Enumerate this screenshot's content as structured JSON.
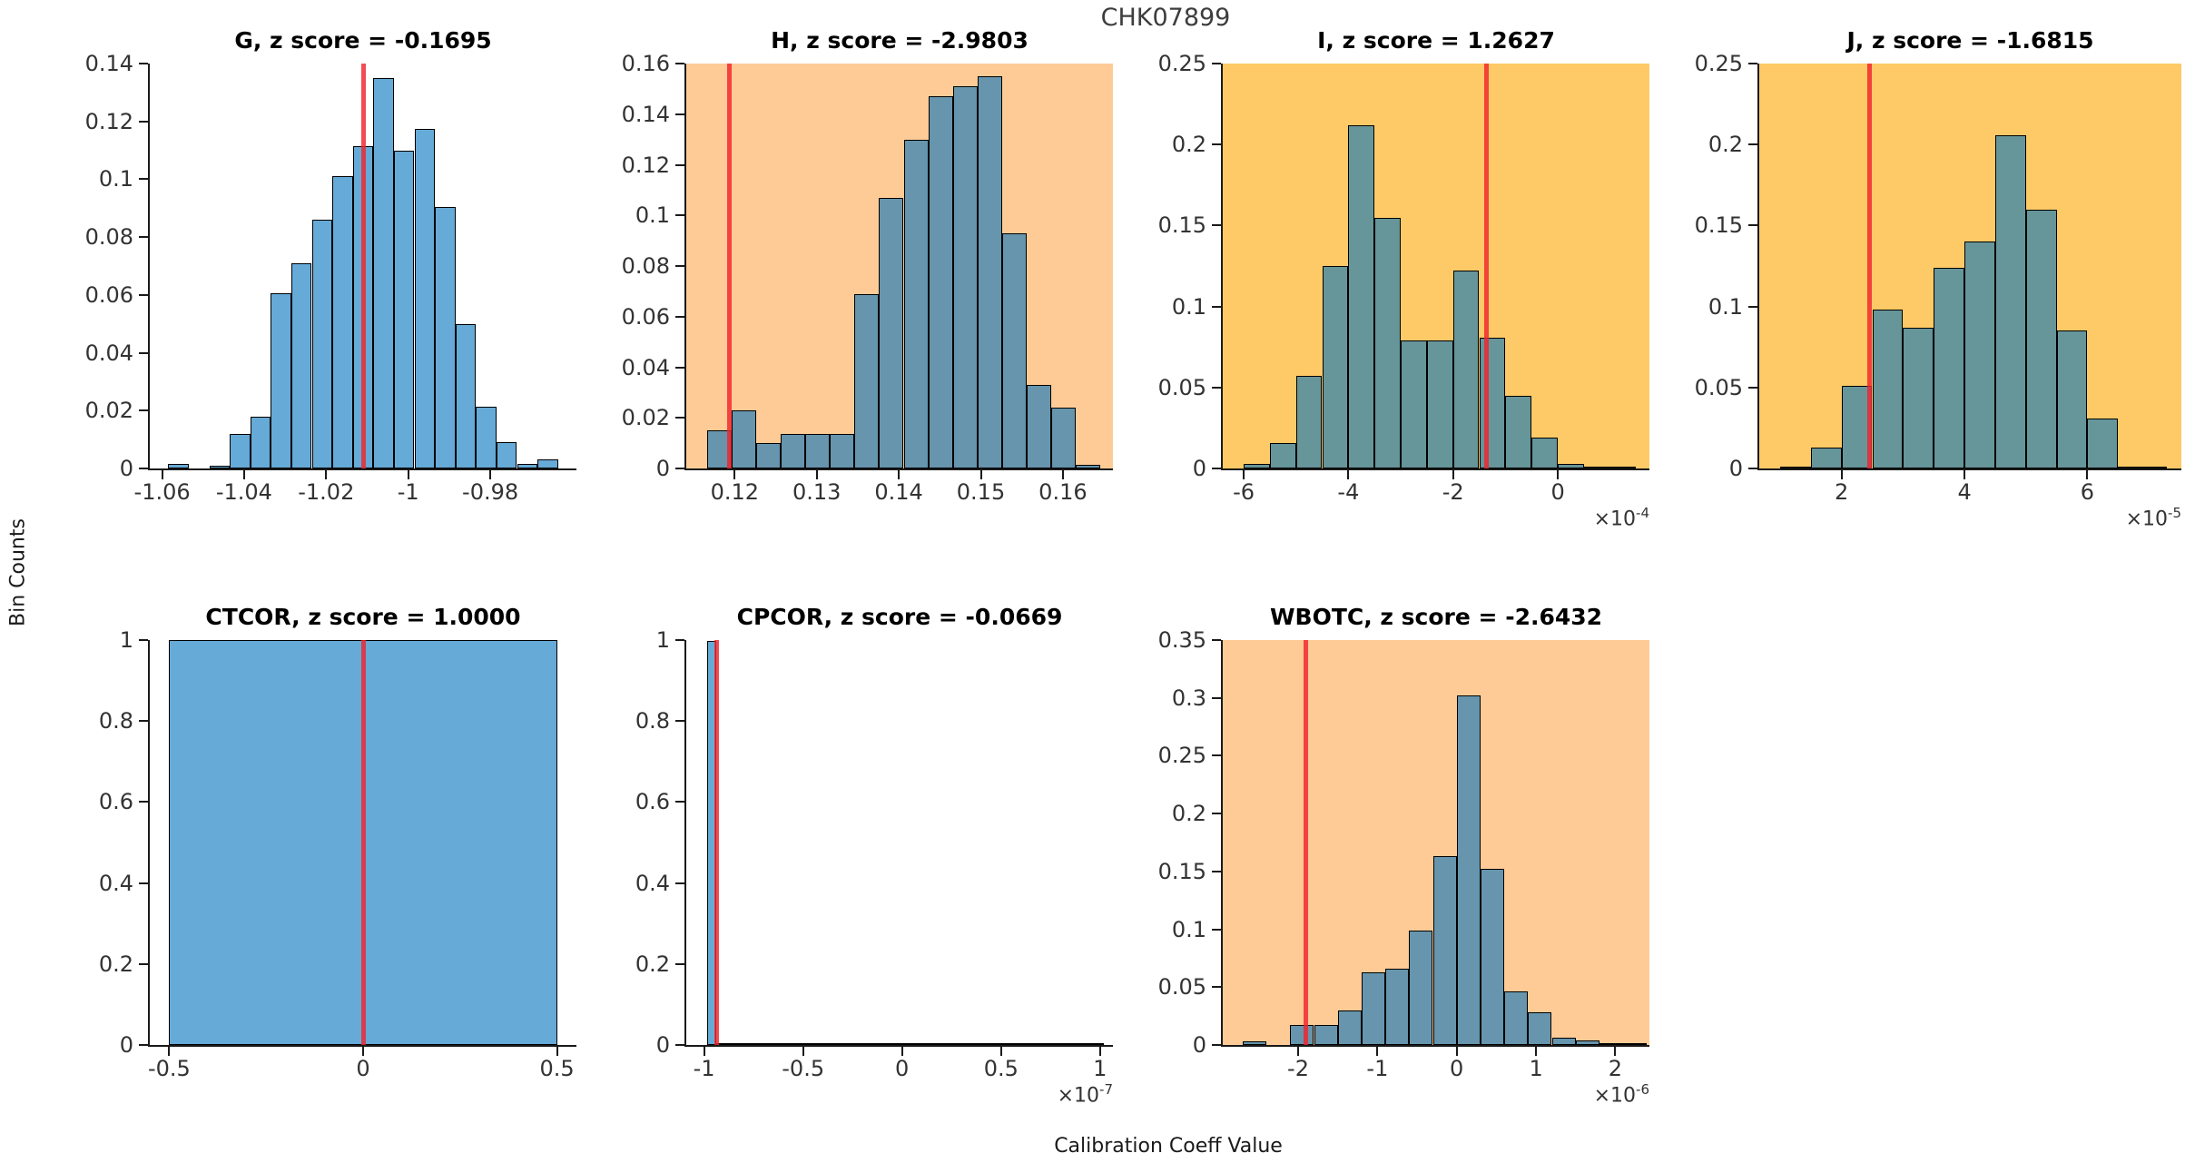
{
  "figure": {
    "suptitle": "CHK07899",
    "xlabel": "Calibration Coeff Value",
    "ylabel": "Bin Counts"
  },
  "colors": {
    "bar_fill": "rgba(0,114,189,0.6)",
    "bar_edge": "#000000",
    "red_line": "rgba(240,35,45,0.82)",
    "axis": "#1a1a1a",
    "tick_label": "#333333",
    "bg_white": "#ffffff",
    "bg_peach": "#fecb96",
    "bg_yellow": "#feca67"
  },
  "chart_data": [
    {
      "type": "bar",
      "name": "G",
      "title": "G, z score = -0.1695",
      "z_score": -0.1695,
      "background": "#ffffff",
      "exponent": null,
      "xlim": [
        -1.063,
        -0.959
      ],
      "ylim": [
        0,
        0.14
      ],
      "red_line_x": -1.011,
      "bin_width": 0.005,
      "xticks": [
        {
          "v": -1.06,
          "label": "-1.06"
        },
        {
          "v": -1.04,
          "label": "-1.04"
        },
        {
          "v": -1.02,
          "label": "-1.02"
        },
        {
          "v": -1.0,
          "label": "-1"
        },
        {
          "v": -0.98,
          "label": "-0.98"
        }
      ],
      "yticks": [
        {
          "v": 0,
          "label": "0"
        },
        {
          "v": 0.02,
          "label": "0.02"
        },
        {
          "v": 0.04,
          "label": "0.04"
        },
        {
          "v": 0.06,
          "label": "0.06"
        },
        {
          "v": 0.08,
          "label": "0.08"
        },
        {
          "v": 0.1,
          "label": "0.1"
        },
        {
          "v": 0.12,
          "label": "0.12"
        },
        {
          "v": 0.14,
          "label": "0.14"
        }
      ],
      "bars": [
        {
          "x": -1.0585,
          "h": 0.0015
        },
        {
          "x": -1.0485,
          "h": 0.001
        },
        {
          "x": -1.0435,
          "h": 0.012
        },
        {
          "x": -1.0385,
          "h": 0.018
        },
        {
          "x": -1.0335,
          "h": 0.0605
        },
        {
          "x": -1.0285,
          "h": 0.071
        },
        {
          "x": -1.0235,
          "h": 0.086
        },
        {
          "x": -1.0185,
          "h": 0.101
        },
        {
          "x": -1.0135,
          "h": 0.1115
        },
        {
          "x": -1.0085,
          "h": 0.135
        },
        {
          "x": -1.0035,
          "h": 0.11
        },
        {
          "x": -0.9985,
          "h": 0.1175
        },
        {
          "x": -0.9935,
          "h": 0.0905
        },
        {
          "x": -0.9885,
          "h": 0.05
        },
        {
          "x": -0.9835,
          "h": 0.0215
        },
        {
          "x": -0.9785,
          "h": 0.009
        },
        {
          "x": -0.9735,
          "h": 0.0015
        },
        {
          "x": -0.9685,
          "h": 0.003
        }
      ]
    },
    {
      "type": "bar",
      "name": "H",
      "title": "H, z score = -2.9803",
      "z_score": -2.9803,
      "background": "#fecb96",
      "exponent": null,
      "xlim": [
        0.1141,
        0.1661
      ],
      "ylim": [
        0,
        0.16
      ],
      "red_line_x": 0.1194,
      "bin_width": 0.003,
      "xticks": [
        {
          "v": 0.12,
          "label": "0.12"
        },
        {
          "v": 0.13,
          "label": "0.13"
        },
        {
          "v": 0.14,
          "label": "0.14"
        },
        {
          "v": 0.15,
          "label": "0.15"
        },
        {
          "v": 0.16,
          "label": "0.16"
        }
      ],
      "yticks": [
        {
          "v": 0,
          "label": "0"
        },
        {
          "v": 0.02,
          "label": "0.02"
        },
        {
          "v": 0.04,
          "label": "0.04"
        },
        {
          "v": 0.06,
          "label": "0.06"
        },
        {
          "v": 0.08,
          "label": "0.08"
        },
        {
          "v": 0.1,
          "label": "0.1"
        },
        {
          "v": 0.12,
          "label": "0.12"
        },
        {
          "v": 0.14,
          "label": "0.14"
        },
        {
          "v": 0.16,
          "label": "0.16"
        }
      ],
      "bars": [
        {
          "x": 0.1166,
          "h": 0.015
        },
        {
          "x": 0.1196,
          "h": 0.023
        },
        {
          "x": 0.1226,
          "h": 0.01
        },
        {
          "x": 0.1256,
          "h": 0.0135
        },
        {
          "x": 0.1286,
          "h": 0.0135
        },
        {
          "x": 0.1316,
          "h": 0.0135
        },
        {
          "x": 0.1346,
          "h": 0.069
        },
        {
          "x": 0.1376,
          "h": 0.107
        },
        {
          "x": 0.1406,
          "h": 0.13
        },
        {
          "x": 0.1436,
          "h": 0.147
        },
        {
          "x": 0.1466,
          "h": 0.151
        },
        {
          "x": 0.1496,
          "h": 0.155
        },
        {
          "x": 0.1526,
          "h": 0.093
        },
        {
          "x": 0.1556,
          "h": 0.033
        },
        {
          "x": 0.1586,
          "h": 0.024
        },
        {
          "x": 0.1616,
          "h": 0.0015
        }
      ]
    },
    {
      "type": "bar",
      "name": "I",
      "title": "I, z score = 1.2627",
      "z_score": 1.2627,
      "background": "#feca67",
      "exponent": "-4",
      "xlim": [
        -6.4,
        1.75
      ],
      "ylim": [
        0,
        0.25
      ],
      "red_line_x": -1.37,
      "bin_width": 0.5,
      "xticks": [
        {
          "v": -6,
          "label": "-6"
        },
        {
          "v": -4,
          "label": "-4"
        },
        {
          "v": -2,
          "label": "-2"
        },
        {
          "v": 0,
          "label": "0"
        }
      ],
      "yticks": [
        {
          "v": 0,
          "label": "0"
        },
        {
          "v": 0.05,
          "label": "0.05"
        },
        {
          "v": 0.1,
          "label": "0.1"
        },
        {
          "v": 0.15,
          "label": "0.15"
        },
        {
          "v": 0.2,
          "label": "0.2"
        },
        {
          "v": 0.25,
          "label": "0.25"
        }
      ],
      "bars": [
        {
          "x": -6.0,
          "h": 0.003
        },
        {
          "x": -5.5,
          "h": 0.016
        },
        {
          "x": -5.0,
          "h": 0.057
        },
        {
          "x": -4.5,
          "h": 0.125
        },
        {
          "x": -4.0,
          "h": 0.212
        },
        {
          "x": -3.5,
          "h": 0.155
        },
        {
          "x": -3.0,
          "h": 0.079
        },
        {
          "x": -2.5,
          "h": 0.079
        },
        {
          "x": -2.0,
          "h": 0.122
        },
        {
          "x": -1.5,
          "h": 0.081
        },
        {
          "x": -1.0,
          "h": 0.045
        },
        {
          "x": -0.5,
          "h": 0.019
        },
        {
          "x": 0.0,
          "h": 0.003
        },
        {
          "x": 0.5,
          "h": 0.001
        },
        {
          "x": 1.0,
          "h": 0.001
        }
      ]
    },
    {
      "type": "bar",
      "name": "J",
      "title": "J, z score = -1.6815",
      "z_score": -1.6815,
      "background": "#feca67",
      "exponent": "-5",
      "xlim": [
        0.66,
        7.53
      ],
      "ylim": [
        0,
        0.25
      ],
      "red_line_x": 2.45,
      "bin_width": 0.5,
      "xticks": [
        {
          "v": 2,
          "label": "2"
        },
        {
          "v": 4,
          "label": "4"
        },
        {
          "v": 6,
          "label": "6"
        }
      ],
      "yticks": [
        {
          "v": 0,
          "label": "0"
        },
        {
          "v": 0.05,
          "label": "0.05"
        },
        {
          "v": 0.1,
          "label": "0.1"
        },
        {
          "v": 0.15,
          "label": "0.15"
        },
        {
          "v": 0.2,
          "label": "0.2"
        },
        {
          "v": 0.25,
          "label": "0.25"
        }
      ],
      "bars": [
        {
          "x": 1.0,
          "h": 0.001
        },
        {
          "x": 1.5,
          "h": 0.013
        },
        {
          "x": 2.0,
          "h": 0.051
        },
        {
          "x": 2.5,
          "h": 0.098
        },
        {
          "x": 3.0,
          "h": 0.087
        },
        {
          "x": 3.5,
          "h": 0.124
        },
        {
          "x": 4.0,
          "h": 0.14
        },
        {
          "x": 4.5,
          "h": 0.206
        },
        {
          "x": 5.0,
          "h": 0.16
        },
        {
          "x": 5.5,
          "h": 0.085
        },
        {
          "x": 6.0,
          "h": 0.031
        },
        {
          "x": 6.5,
          "h": 0.001
        },
        {
          "x": 7.0,
          "h": 0.001,
          "w": 0.3
        }
      ]
    },
    {
      "type": "bar",
      "name": "CTCOR",
      "title": "CTCOR, z score = 1.0000",
      "z_score": 1.0,
      "background": "#ffffff",
      "exponent": null,
      "xlim": [
        -0.55,
        0.55
      ],
      "ylim": [
        0,
        1
      ],
      "red_line_x": 0.0,
      "bin_width": 1.0,
      "xticks": [
        {
          "v": -0.5,
          "label": "-0.5"
        },
        {
          "v": 0,
          "label": "0"
        },
        {
          "v": 0.5,
          "label": "0.5"
        }
      ],
      "yticks": [
        {
          "v": 0,
          "label": "0"
        },
        {
          "v": 0.2,
          "label": "0.2"
        },
        {
          "v": 0.4,
          "label": "0.4"
        },
        {
          "v": 0.6,
          "label": "0.6"
        },
        {
          "v": 0.8,
          "label": "0.8"
        },
        {
          "v": 1,
          "label": "1"
        }
      ],
      "bars": [
        {
          "x": -0.5,
          "h": 1.0,
          "w": 1.0
        }
      ]
    },
    {
      "type": "bar",
      "name": "CPCOR",
      "title": "CPCOR, z score = -0.0669",
      "z_score": -0.0669,
      "background": "#ffffff",
      "exponent": "-7",
      "xlim": [
        -1.09,
        1.065
      ],
      "ylim": [
        0,
        1
      ],
      "red_line_x": -0.936,
      "bin_width": 0.048,
      "xticks": [
        {
          "v": -1,
          "label": "-1"
        },
        {
          "v": -0.5,
          "label": "-0.5"
        },
        {
          "v": 0,
          "label": "0"
        },
        {
          "v": 0.5,
          "label": "0.5"
        },
        {
          "v": 1,
          "label": "1"
        }
      ],
      "yticks": [
        {
          "v": 0,
          "label": "0"
        },
        {
          "v": 0.2,
          "label": "0.2"
        },
        {
          "v": 0.4,
          "label": "0.4"
        },
        {
          "v": 0.6,
          "label": "0.6"
        },
        {
          "v": 0.8,
          "label": "0.8"
        },
        {
          "v": 1,
          "label": "1"
        }
      ],
      "bars": [
        {
          "x": -0.985,
          "h": 0.997,
          "w": 0.048
        },
        {
          "x": -0.937,
          "h": 0.0022,
          "w": 1.957
        },
        {
          "x": 0.93,
          "h": 0.004,
          "w": 0.09
        }
      ]
    },
    {
      "type": "bar",
      "name": "WBOTC",
      "title": "WBOTC, z score = -2.6432",
      "z_score": -2.6432,
      "background": "#fecb96",
      "exponent": "-6",
      "xlim": [
        -2.95,
        2.43
      ],
      "ylim": [
        0,
        0.35
      ],
      "red_line_x": -1.9,
      "bin_width": 0.3,
      "xticks": [
        {
          "v": -2,
          "label": "-2"
        },
        {
          "v": -1,
          "label": "-1"
        },
        {
          "v": 0,
          "label": "0"
        },
        {
          "v": 1,
          "label": "1"
        },
        {
          "v": 2,
          "label": "2"
        }
      ],
      "yticks": [
        {
          "v": 0,
          "label": "0"
        },
        {
          "v": 0.05,
          "label": "0.05"
        },
        {
          "v": 0.1,
          "label": "0.1"
        },
        {
          "v": 0.15,
          "label": "0.15"
        },
        {
          "v": 0.2,
          "label": "0.2"
        },
        {
          "v": 0.25,
          "label": "0.25"
        },
        {
          "v": 0.3,
          "label": "0.3"
        },
        {
          "v": 0.35,
          "label": "0.35"
        }
      ],
      "bars": [
        {
          "x": -2.7,
          "h": 0.003
        },
        {
          "x": -2.1,
          "h": 0.017
        },
        {
          "x": -1.8,
          "h": 0.017
        },
        {
          "x": -1.5,
          "h": 0.03
        },
        {
          "x": -1.2,
          "h": 0.063
        },
        {
          "x": -0.9,
          "h": 0.066
        },
        {
          "x": -0.6,
          "h": 0.099
        },
        {
          "x": -0.3,
          "h": 0.163
        },
        {
          "x": 0.0,
          "h": 0.302
        },
        {
          "x": 0.3,
          "h": 0.152
        },
        {
          "x": 0.6,
          "h": 0.046
        },
        {
          "x": 0.9,
          "h": 0.028
        },
        {
          "x": 1.2,
          "h": 0.006
        },
        {
          "x": 1.5,
          "h": 0.004
        },
        {
          "x": 1.8,
          "h": 0.0015
        },
        {
          "x": 2.1,
          "h": 0.0015
        }
      ]
    }
  ]
}
